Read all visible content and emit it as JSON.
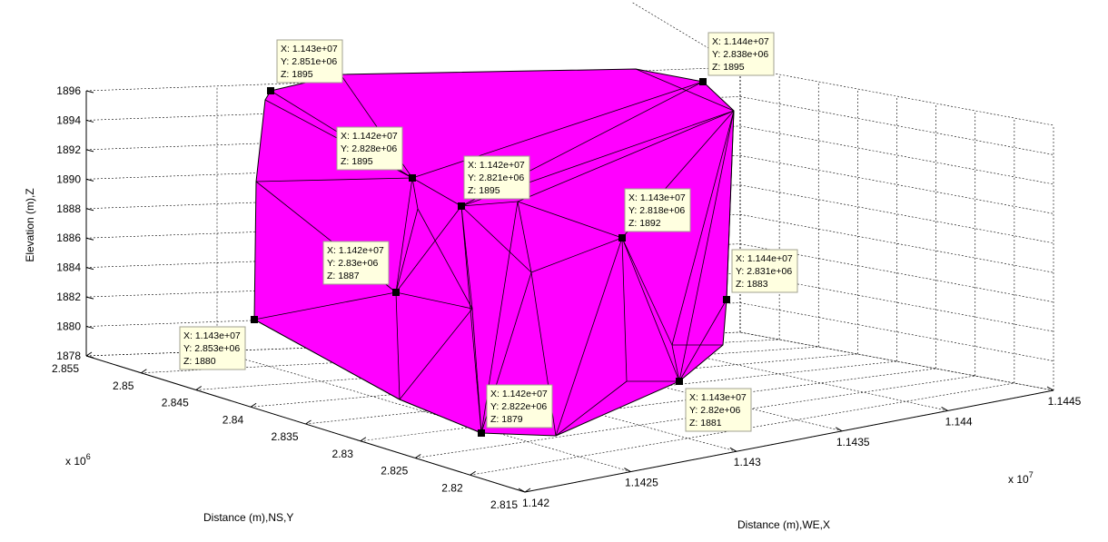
{
  "chart_data": {
    "type": "surface",
    "surface_color": "#ff00ff",
    "edge_color": "#000000",
    "zlabel": "Elevation (m),Z",
    "ylabel": "Distance (m),NS,Y",
    "xlabel": "Distance (m),WE,X",
    "y_exponent": "x 10",
    "y_exponent_power": "6",
    "x_exponent": "x 10",
    "x_exponent_power": "7",
    "z_ticks": [
      "1878",
      "1880",
      "1882",
      "1884",
      "1886",
      "1888",
      "1890",
      "1892",
      "1894",
      "1896"
    ],
    "y_ticks": [
      "2.855",
      "2.85",
      "2.845",
      "2.84",
      "2.835",
      "2.83",
      "2.825",
      "2.82",
      "2.815"
    ],
    "x_ticks": [
      "1.142",
      "1.1425",
      "1.143",
      "1.1435",
      "1.144",
      "1.1445"
    ],
    "zlim": [
      1878,
      1896
    ],
    "ylim": [
      2.815,
      2.855
    ],
    "xlim": [
      1.142,
      1.1445
    ],
    "datatips": [
      {
        "x": "X: 1.143e+07",
        "y": "Y: 2.851e+06",
        "z": "Z: 1895"
      },
      {
        "x": "X: 1.144e+07",
        "y": "Y: 2.838e+06",
        "z": "Z: 1895"
      },
      {
        "x": "X: 1.142e+07",
        "y": "Y: 2.828e+06",
        "z": "Z: 1895"
      },
      {
        "x": "X: 1.142e+07",
        "y": "Y: 2.821e+06",
        "z": "Z: 1895"
      },
      {
        "x": "X: 1.143e+07",
        "y": "Y: 2.818e+06",
        "z": "Z: 1892"
      },
      {
        "x": "X: 1.142e+07",
        "y": "Y: 2.83e+06",
        "z": "Z: 1887"
      },
      {
        "x": "X: 1.144e+07",
        "y": "Y: 2.831e+06",
        "z": "Z: 1883"
      },
      {
        "x": "X: 1.143e+07",
        "y": "Y: 2.853e+06",
        "z": "Z: 1880"
      },
      {
        "x": "X: 1.142e+07",
        "y": "Y: 2.822e+06",
        "z": "Z: 1879"
      },
      {
        "x": "X: 1.143e+07",
        "y": "Y: 2.82e+06",
        "z": "Z: 1881"
      }
    ]
  }
}
